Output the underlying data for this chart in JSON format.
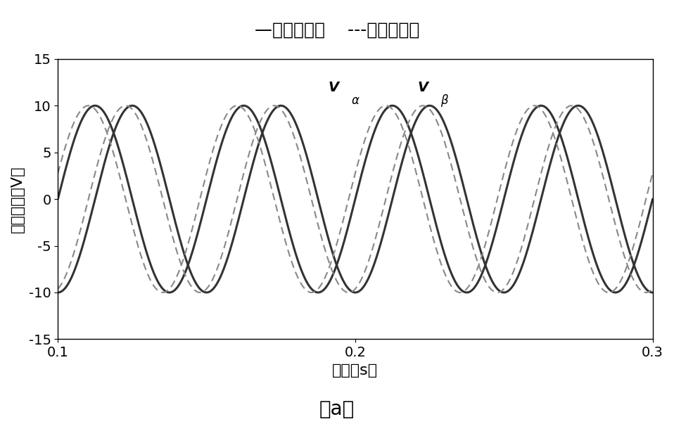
{
  "title_before": "—信号注入前",
  "title_after": "---信号注入后",
  "xlabel": "时间（s）",
  "ylabel": "电压矢量（V）",
  "label_Va": "V",
  "label_Va_sub": "α",
  "label_Vb": "V",
  "label_Vb_sub": "β",
  "xlim": [
    0.1,
    0.3
  ],
  "ylim": [
    -15,
    15
  ],
  "yticks": [
    -15,
    -10,
    -5,
    0,
    5,
    10,
    15
  ],
  "xticks": [
    0.1,
    0.2,
    0.3
  ],
  "amplitude": 10,
  "frequency": 20,
  "phase_alpha": 0.0,
  "phase_beta": -1.5707963267948966,
  "phase_shift_dashed": 0.15,
  "color_solid": "#333333",
  "color_dashed": "#888888",
  "linewidth_solid": 2.2,
  "linewidth_dashed": 1.5,
  "caption": "（a）",
  "background_color": "#ffffff",
  "title_fontsize": 18,
  "axis_fontsize": 16,
  "tick_fontsize": 14,
  "caption_fontsize": 20
}
